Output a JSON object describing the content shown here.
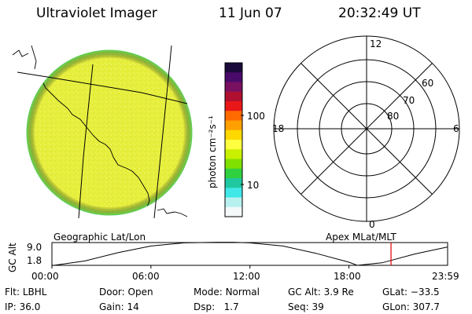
{
  "header": {
    "instrument": "Ultraviolet Imager",
    "date": "11 Jun 07",
    "time": "20:32:49 UT"
  },
  "colorbar": {
    "unit_label": "photon cm⁻²s⁻¹",
    "tick_labels": [
      "100",
      "10"
    ],
    "colors": [
      "#1a0a3a",
      "#4a0a6a",
      "#7a1060",
      "#b01030",
      "#e81818",
      "#ff6a00",
      "#ffa000",
      "#ffd800",
      "#ffff40",
      "#c8f000",
      "#80e000",
      "#30d040",
      "#20c8a0",
      "#40e8e8",
      "#b8f0f0",
      "#f4f8f8"
    ]
  },
  "earth_map": {
    "fill_color": "#e8f040",
    "limb_color": "#60d060"
  },
  "polar_plot": {
    "latitude_labels": [
      "60",
      "70",
      "80"
    ],
    "mlt_labels": {
      "top": "12",
      "left": "18",
      "right": "6",
      "bottom": "0"
    }
  },
  "timeline": {
    "left_label": "Geographic Lat/Lon",
    "right_label": "Apex MLat/MLT",
    "y_axis_title": "GC Alt",
    "y_ticks": [
      "9.0",
      "1.8"
    ],
    "x_ticks": [
      "00:00",
      "06:00",
      "12:00",
      "18:00",
      "23:59"
    ],
    "marker_color": "#e00000"
  },
  "chart_data": {
    "type": "line",
    "title": "",
    "xlabel": "",
    "ylabel": "GC Alt",
    "x_hours": [
      0.0,
      2.0,
      4.0,
      6.0,
      8.0,
      10.0,
      11.0,
      12.0,
      14.0,
      16.0,
      18.0,
      18.5,
      20.0,
      22.0,
      23.98
    ],
    "y_re": [
      1.7,
      3.2,
      5.8,
      7.9,
      8.9,
      9.1,
      9.1,
      8.9,
      7.9,
      5.6,
      2.8,
      1.8,
      2.6,
      5.4,
      7.6
    ],
    "xlim": [
      0,
      23.98
    ],
    "ylim": [
      1.8,
      9.0
    ],
    "marker_hour": 20.55
  },
  "status": {
    "filter_label": "Flt:",
    "filter_value": "LBHL",
    "ip_label": "IP:",
    "ip_value": "36.0",
    "door_label": "Door:",
    "door_value": "Open",
    "gain_label": "Gain:",
    "gain_value": "14",
    "mode_label": "Mode:",
    "mode_value": "Normal",
    "dsp_label": "Dsp:",
    "dsp_value": "1.7",
    "gcalt_label": "GC Alt:",
    "gcalt_value": "3.9 Re",
    "seq_label": "Seq:",
    "seq_value": "39",
    "glat_label": "GLat:",
    "glat_value": "−33.5",
    "glon_label": "GLon:",
    "glon_value": "307.7"
  }
}
